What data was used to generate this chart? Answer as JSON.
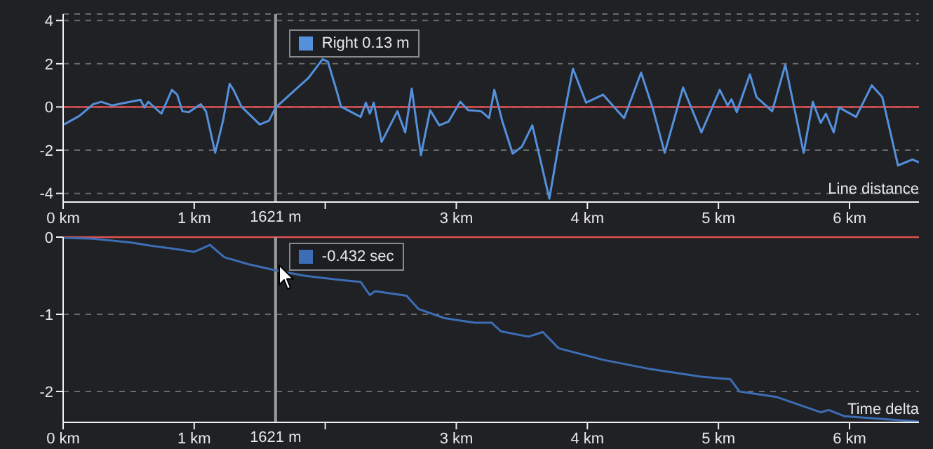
{
  "chart_data": [
    {
      "type": "line",
      "x": [
        0.007,
        0.125,
        0.23,
        0.29,
        0.375,
        0.48,
        0.59,
        0.62,
        0.65,
        0.75,
        0.83,
        0.87,
        0.91,
        0.96,
        1.05,
        1.09,
        1.16,
        1.22,
        1.27,
        1.3,
        1.36,
        1.5,
        1.57,
        1.62,
        1.73,
        1.87,
        1.98,
        2.02,
        2.09,
        2.12,
        2.27,
        2.31,
        2.34,
        2.37,
        2.43,
        2.55,
        2.61,
        2.66,
        2.73,
        2.8,
        2.87,
        2.94,
        3.03,
        3.09,
        3.19,
        3.25,
        3.29,
        3.35,
        3.43,
        3.5,
        3.58,
        3.71,
        3.8,
        3.89,
        3.99,
        4.12,
        4.28,
        4.41,
        4.5,
        4.59,
        4.73,
        4.87,
        5.01,
        5.07,
        5.1,
        5.14,
        5.24,
        5.29,
        5.41,
        5.51,
        5.65,
        5.72,
        5.78,
        5.82,
        5.88,
        5.92,
        6.05,
        6.17,
        6.25,
        6.37,
        6.48,
        6.53
      ],
      "series": [
        {
          "color": "#5590dc",
          "values": [
            -0.81,
            -0.41,
            0.13,
            0.24,
            0.07,
            0.2,
            0.33,
            -0.02,
            0.24,
            -0.31,
            0.79,
            0.57,
            -0.2,
            -0.24,
            0.13,
            -0.2,
            -2.12,
            -0.64,
            1.07,
            0.79,
            0.02,
            -0.81,
            -0.64,
            -0.04,
            0.57,
            1.33,
            2.21,
            2.1,
            0.68,
            0.02,
            -0.46,
            0.2,
            -0.31,
            0.2,
            -1.62,
            -0.2,
            -1.18,
            0.85,
            -2.23,
            -0.15,
            -0.85,
            -0.68,
            0.24,
            -0.15,
            -0.2,
            -0.52,
            0.79,
            -0.64,
            -2.16,
            -1.84,
            -0.85,
            -4.24,
            -1.07,
            1.77,
            0.2,
            0.57,
            -0.52,
            1.59,
            -0.09,
            -2.12,
            0.9,
            -1.18,
            0.79,
            0.07,
            0.35,
            -0.24,
            1.51,
            0.46,
            -0.2,
            1.95,
            -2.12,
            0.24,
            -0.74,
            -0.31,
            -1.18,
            -0.02,
            -0.46,
            1.0,
            0.46,
            -2.71,
            -2.43,
            -2.56
          ]
        }
      ],
      "xlim": [
        0,
        6.53
      ],
      "xticks": [
        {
          "value": 0,
          "label": "0 km"
        },
        {
          "value": 1,
          "label": "1 km"
        },
        {
          "value": 2,
          "label": null
        },
        {
          "value": 3,
          "label": "3 km"
        },
        {
          "value": 4,
          "label": "4 km"
        },
        {
          "value": 5,
          "label": "5 km"
        },
        {
          "value": 6,
          "label": "6 km"
        }
      ],
      "ylim": [
        -4.4,
        4.3
      ],
      "yticks": [
        -4,
        -2,
        0,
        2,
        4
      ],
      "grid": "y",
      "ref_lines": [
        {
          "axis": "y",
          "value": 0,
          "color": "#e05050"
        },
        {
          "axis": "x",
          "value": 1.621,
          "color": "#9a9a9a",
          "label": "1621 m"
        }
      ],
      "annotations": [
        "Right 0.13 m",
        "Line distance"
      ]
    },
    {
      "type": "line",
      "x": [
        0.007,
        0.23,
        0.52,
        0.66,
        0.8,
        1.0,
        1.07,
        1.12,
        1.23,
        1.41,
        1.62,
        1.84,
        2.09,
        2.27,
        2.34,
        2.38,
        2.62,
        2.71,
        2.91,
        3.14,
        3.27,
        3.34,
        3.55,
        3.66,
        3.78,
        4.12,
        4.48,
        4.87,
        5.09,
        5.16,
        5.44,
        5.78,
        5.84,
        5.96,
        6.53
      ],
      "series": [
        {
          "color": "#3d6db5",
          "values": [
            -0.01,
            -0.02,
            -0.07,
            -0.11,
            -0.14,
            -0.19,
            -0.14,
            -0.1,
            -0.26,
            -0.35,
            -0.43,
            -0.5,
            -0.55,
            -0.58,
            -0.75,
            -0.7,
            -0.76,
            -0.93,
            -1.05,
            -1.11,
            -1.11,
            -1.22,
            -1.29,
            -1.23,
            -1.44,
            -1.59,
            -1.71,
            -1.81,
            -1.84,
            -2.0,
            -2.07,
            -2.27,
            -2.24,
            -2.32,
            -2.39
          ]
        }
      ],
      "xlim": [
        0,
        6.53
      ],
      "xticks": [
        {
          "value": 0,
          "label": "0 km"
        },
        {
          "value": 1,
          "label": "1 km"
        },
        {
          "value": 2,
          "label": null
        },
        {
          "value": 3,
          "label": "3 km"
        },
        {
          "value": 4,
          "label": "4 km"
        },
        {
          "value": 5,
          "label": "5 km"
        },
        {
          "value": 6,
          "label": "6 km"
        }
      ],
      "ylim": [
        -2.4,
        0
      ],
      "yticks": [
        -2,
        -1,
        0
      ],
      "grid": "y",
      "ref_lines": [
        {
          "axis": "y",
          "value": 0,
          "color": "#e05050"
        },
        {
          "axis": "x",
          "value": 1.621,
          "color": "#9a9a9a",
          "label": "1621 m"
        }
      ],
      "annotations": [
        "-0.432 sec",
        "Time delta"
      ]
    }
  ]
}
